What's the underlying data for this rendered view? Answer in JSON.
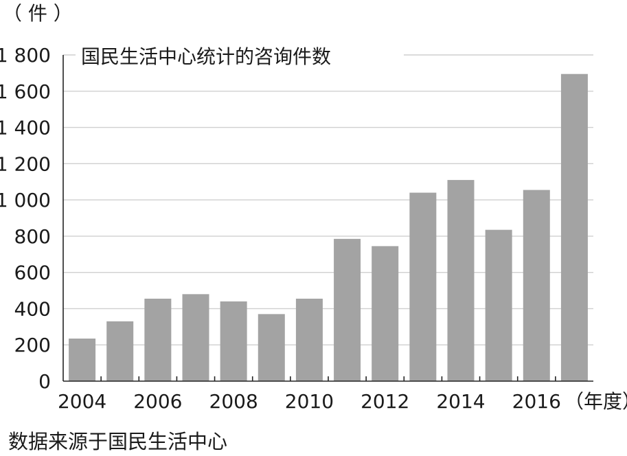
{
  "chart_data": {
    "type": "bar",
    "title": "国民生活中心统计的咨询件数",
    "y_unit_label": "（ 件 ）",
    "x_unit_label": "（年度）",
    "source": "数据来源于国民生活中心",
    "categories": [
      "2004",
      "2005",
      "2006",
      "2007",
      "2008",
      "2009",
      "2010",
      "2011",
      "2012",
      "2013",
      "2014",
      "2015",
      "2016",
      "2017"
    ],
    "x_tick_labels": [
      "2004",
      "2006",
      "2008",
      "2010",
      "2012",
      "2014",
      "2016"
    ],
    "values": [
      235,
      330,
      455,
      480,
      440,
      370,
      455,
      785,
      745,
      1040,
      1110,
      835,
      1055,
      1695
    ],
    "ylim": [
      0,
      1800
    ],
    "y_ticks": [
      0,
      200,
      400,
      600,
      800,
      1000,
      1200,
      1400,
      1600,
      1800
    ],
    "y_tick_labels": [
      "0",
      "200",
      "400",
      "600",
      "800",
      "1 000",
      "1 200",
      "1 400",
      "1 600",
      "1 800"
    ],
    "grid": true,
    "bar_color": "#a3a3a3"
  }
}
